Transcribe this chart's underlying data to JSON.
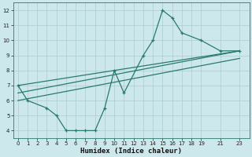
{
  "line1_x": [
    0,
    1,
    3,
    4,
    5,
    6,
    7,
    8,
    9,
    10,
    11,
    13,
    14,
    15,
    16,
    17,
    19,
    21,
    23
  ],
  "line1_y": [
    7,
    6,
    5.5,
    5,
    4,
    4,
    4,
    4,
    5.5,
    8,
    6.5,
    9,
    10,
    12,
    11.5,
    10.5,
    10,
    9.3,
    9.3
  ],
  "line2_x": [
    0,
    23
  ],
  "line2_y": [
    7,
    9.3
  ],
  "line3_x": [
    0,
    23
  ],
  "line3_y": [
    6.5,
    9.3
  ],
  "line4_x": [
    0,
    23
  ],
  "line4_y": [
    6.0,
    8.8
  ],
  "line_color": "#2a7a6e",
  "bg_color": "#cce8ec",
  "grid_color": "#aacccc",
  "xlabel": "Humidex (Indice chaleur)",
  "xlim": [
    -0.5,
    24
  ],
  "ylim": [
    3.5,
    12.5
  ],
  "xticks": [
    0,
    1,
    2,
    3,
    4,
    5,
    6,
    7,
    8,
    9,
    10,
    11,
    12,
    13,
    14,
    15,
    16,
    17,
    18,
    19,
    21,
    23
  ],
  "yticks": [
    4,
    5,
    6,
    7,
    8,
    9,
    10,
    11,
    12
  ],
  "marker": "+"
}
